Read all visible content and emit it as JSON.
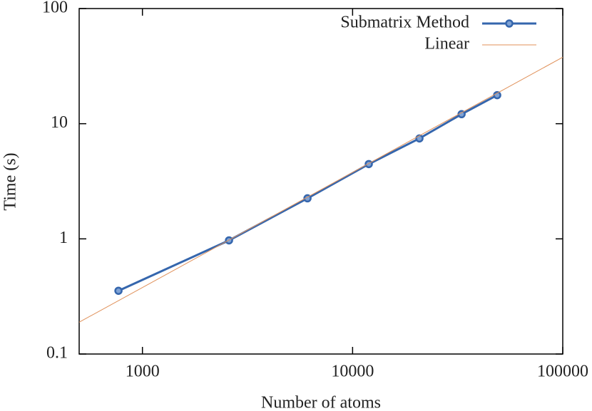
{
  "chart_data": {
    "type": "line",
    "x_label": "Number of atoms",
    "y_label": "Time (s)",
    "series": [
      {
        "name": "Submatrix Method",
        "color": "#3566ad",
        "marker": "circle",
        "x": [
          769,
          2582,
          6100,
          11940,
          20800,
          33000,
          48750
        ],
        "values": [
          0.354,
          0.97,
          2.25,
          4.46,
          7.45,
          12.1,
          17.7
        ]
      },
      {
        "name": "Linear",
        "color": "#e0915a",
        "x": [
          500,
          100000
        ],
        "values": [
          0.189,
          37.8
        ]
      }
    ],
    "xlim": [
      500,
      100000
    ],
    "ylim": [
      0.1,
      100
    ],
    "xticks": [
      1000,
      10000,
      100000
    ],
    "yticks": [
      0.1,
      1,
      10,
      100
    ],
    "xscale": "log",
    "yscale": "log",
    "legend": "upper right"
  }
}
